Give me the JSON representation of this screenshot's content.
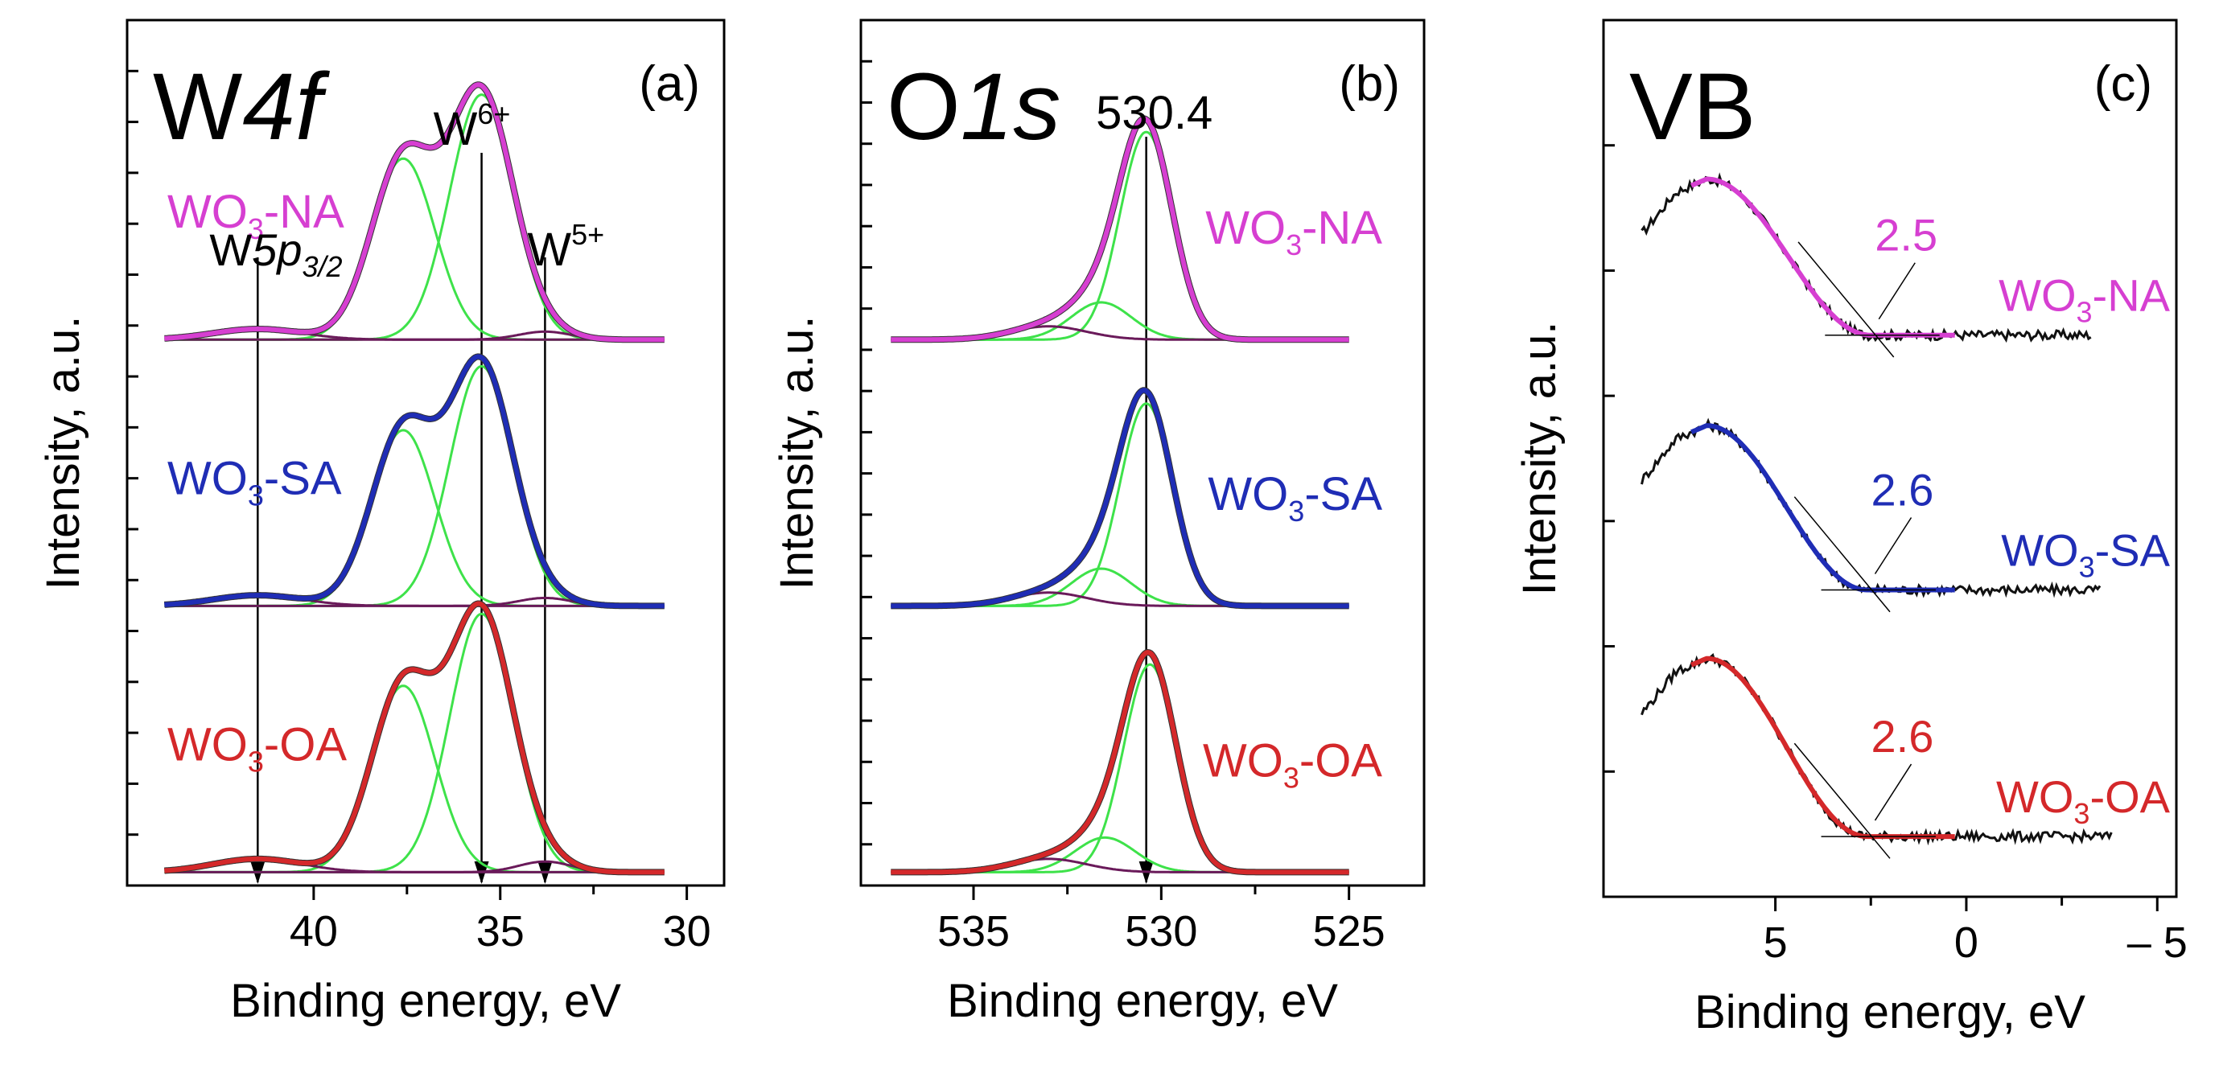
{
  "chart_data": [
    {
      "id": "a",
      "type": "line",
      "panel_label": "(a)",
      "title_parts": [
        "W",
        "4f"
      ],
      "xlabel": "Binding energy, eV",
      "ylabel": "Intensity, a.u.",
      "xlim": [
        45,
        29
      ],
      "x_reversed": true,
      "xticks": [
        40,
        35,
        30
      ],
      "ylim": [
        -0.05,
        3.2
      ],
      "y_minor_ticks": 16,
      "markers": [
        {
          "x": 41.5,
          "label_parts": [
            "W",
            "5p",
            "3/2"
          ]
        },
        {
          "x": 35.5,
          "label_parts": [
            "W",
            "6+"
          ]
        },
        {
          "x": 33.8,
          "label_parts": [
            "W",
            "5+"
          ]
        }
      ],
      "series": [
        {
          "name": "WO3-NA",
          "label_parts": [
            "WO",
            "3",
            "-NA"
          ],
          "color": "#d63fd1",
          "offset": 2.0,
          "components": [
            {
              "center": 35.5,
              "amp": 0.92,
              "width": 0.85
            },
            {
              "center": 37.6,
              "amp": 0.68,
              "width": 0.85
            },
            {
              "center": 41.5,
              "amp": 0.04,
              "width": 1.2
            },
            {
              "center": 33.8,
              "amp": 0.03,
              "width": 0.7
            }
          ]
        },
        {
          "name": "WO3-SA",
          "label_parts": [
            "WO",
            "3",
            "-SA"
          ],
          "color": "#1f2db5",
          "offset": 1.0,
          "components": [
            {
              "center": 35.5,
              "amp": 0.9,
              "width": 0.85
            },
            {
              "center": 37.6,
              "amp": 0.66,
              "width": 0.85
            },
            {
              "center": 41.5,
              "amp": 0.04,
              "width": 1.2
            },
            {
              "center": 33.8,
              "amp": 0.03,
              "width": 0.7
            }
          ]
        },
        {
          "name": "WO3-OA",
          "label_parts": [
            "WO",
            "3",
            "-OA"
          ],
          "color": "#d4282a",
          "offset": 0.0,
          "components": [
            {
              "center": 35.5,
              "amp": 0.97,
              "width": 0.85
            },
            {
              "center": 37.6,
              "amp": 0.7,
              "width": 0.85
            },
            {
              "center": 41.5,
              "amp": 0.05,
              "width": 1.2
            },
            {
              "center": 33.8,
              "amp": 0.04,
              "width": 0.7
            }
          ]
        }
      ]
    },
    {
      "id": "b",
      "type": "line",
      "panel_label": "(b)",
      "title_parts": [
        "O",
        "1s"
      ],
      "xlabel": "Binding energy, eV",
      "ylabel": "Intensity, a.u.",
      "xlim": [
        538,
        523
      ],
      "x_reversed": true,
      "xticks": [
        535,
        530,
        525
      ],
      "ylim": [
        -0.05,
        3.2
      ],
      "y_minor_ticks": 20,
      "markers": [
        {
          "x": 530.4,
          "label": "530.4"
        }
      ],
      "series": [
        {
          "name": "WO3-NA",
          "label_parts": [
            "WO",
            "3",
            "-NA"
          ],
          "color": "#d63fd1",
          "offset": 2.0,
          "components": [
            {
              "center": 530.4,
              "amp": 0.78,
              "width": 0.7
            },
            {
              "center": 531.6,
              "amp": 0.14,
              "width": 0.8
            },
            {
              "center": 533.0,
              "amp": 0.05,
              "width": 1.0
            }
          ]
        },
        {
          "name": "WO3-SA",
          "label_parts": [
            "WO",
            "3",
            "-SA"
          ],
          "color": "#1f2db5",
          "offset": 1.0,
          "components": [
            {
              "center": 530.4,
              "amp": 0.76,
              "width": 0.7
            },
            {
              "center": 531.6,
              "amp": 0.14,
              "width": 0.8
            },
            {
              "center": 533.0,
              "amp": 0.05,
              "width": 1.0
            }
          ]
        },
        {
          "name": "WO3-OA",
          "label_parts": [
            "WO",
            "3",
            "-OA"
          ],
          "color": "#d4282a",
          "offset": 0.0,
          "components": [
            {
              "center": 530.3,
              "amp": 0.78,
              "width": 0.7
            },
            {
              "center": 531.5,
              "amp": 0.13,
              "width": 0.8
            },
            {
              "center": 533.0,
              "amp": 0.05,
              "width": 1.0
            }
          ]
        }
      ]
    },
    {
      "id": "c",
      "type": "line",
      "panel_label": "(c)",
      "title": "VB",
      "xlabel": "Binding energy, eV",
      "ylabel": "Intensity, a.u.",
      "xlim": [
        9.5,
        -5.5
      ],
      "x_reversed": true,
      "xticks": [
        5,
        0,
        -5
      ],
      "xtick_labels": [
        "5",
        "0",
        "– 5"
      ],
      "ylim": [
        0,
        3.2
      ],
      "y_minor_ticks": 6,
      "series": [
        {
          "name": "WO3-NA",
          "label_parts": [
            "WO",
            "3",
            "-NA"
          ],
          "color": "#d63fd1",
          "edge_value": "2.5",
          "edge": 2.5,
          "base": 2.05,
          "top": 2.62,
          "x_start": 8.5,
          "x_end": -3.3
        },
        {
          "name": "WO3-SA",
          "label_parts": [
            "WO",
            "3",
            "-SA"
          ],
          "color": "#1f2db5",
          "edge_value": "2.6",
          "edge": 2.6,
          "base": 1.12,
          "top": 1.72,
          "x_start": 8.5,
          "x_end": -3.5
        },
        {
          "name": "WO3-OA",
          "label_parts": [
            "WO",
            "3",
            "-OA"
          ],
          "color": "#d4282a",
          "edge_value": "2.6",
          "edge": 2.6,
          "base": 0.22,
          "top": 0.87,
          "x_start": 8.5,
          "x_end": -3.8
        }
      ]
    }
  ]
}
